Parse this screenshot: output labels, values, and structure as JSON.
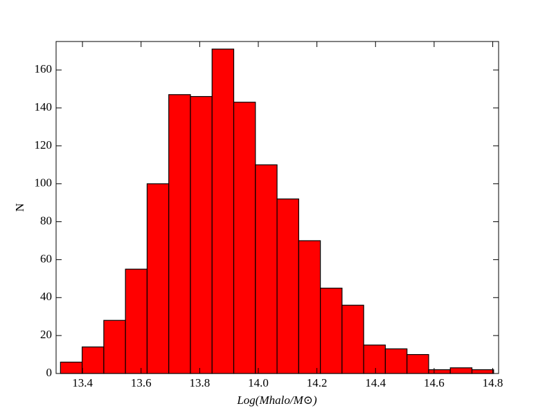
{
  "chart_data": {
    "type": "histogram",
    "xlabel": "Log(Mhalo/M⊙)",
    "ylabel": "N",
    "bins": [
      13.325,
      13.3989,
      13.4728,
      13.5467,
      13.6206,
      13.6945,
      13.7684,
      13.8423,
      13.9162,
      13.9901,
      14.064,
      14.1379,
      14.2118,
      14.2857,
      14.3596,
      14.4335,
      14.5074,
      14.5813,
      14.6552,
      14.7291,
      14.803
    ],
    "values": [
      6,
      14,
      28,
      55,
      100,
      147,
      146,
      171,
      143,
      110,
      92,
      70,
      45,
      36,
      15,
      13,
      10,
      2,
      3,
      2
    ],
    "color": "#ff0000",
    "xlim": [
      13.31,
      14.82
    ],
    "xticks": [
      13.4,
      13.6,
      13.8,
      {
        "value": 14.0,
        "label": "14.0"
      },
      14.2,
      14.4,
      14.6,
      14.8
    ],
    "ylim": [
      0,
      175
    ],
    "yticks": [
      0,
      20,
      40,
      60,
      80,
      100,
      120,
      140,
      160
    ]
  }
}
